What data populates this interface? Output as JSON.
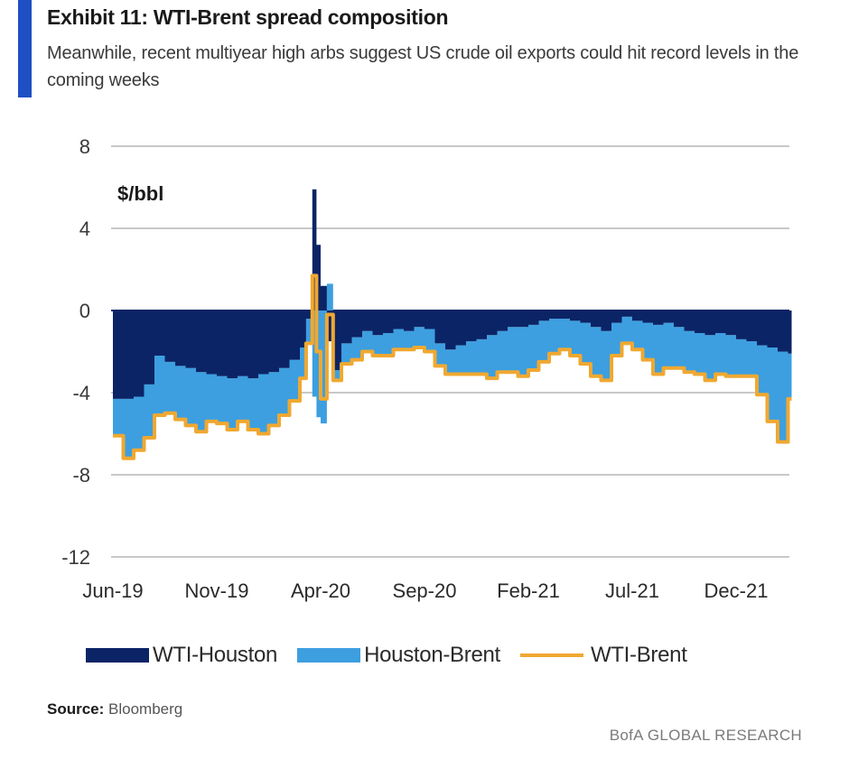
{
  "header": {
    "title": "Exhibit 11: WTI-Brent spread composition",
    "subtitle": "Meanwhile, recent multiyear high arbs suggest US crude oil exports could hit record levels in the coming weeks"
  },
  "footer": {
    "source_label": "Source:",
    "source_value": "Bloomberg",
    "brand": "BofA GLOBAL RESEARCH"
  },
  "chart_data": {
    "type": "area",
    "title": "Exhibit 11: WTI-Brent spread composition",
    "ylabel": "$/bbl",
    "xlabel": "",
    "ylim": [
      -12,
      8
    ],
    "yticks": [
      8,
      4,
      0,
      -4,
      -8,
      -12
    ],
    "xticks": [
      "Jun-19",
      "Nov-19",
      "Apr-20",
      "Sep-20",
      "Feb-21",
      "Jul-21",
      "Dec-21"
    ],
    "x_unit": "months since Jun-19",
    "x_range": [
      0,
      32.5
    ],
    "grid": true,
    "legend_position": "bottom",
    "x": [
      0,
      0.5,
      1,
      1.5,
      2,
      2.5,
      3,
      3.5,
      4,
      4.5,
      5,
      5.5,
      6,
      6.5,
      7,
      7.5,
      8,
      8.5,
      9,
      9.3,
      9.6,
      9.8,
      10,
      10.3,
      10.6,
      11,
      11.5,
      12,
      12.5,
      13,
      13.5,
      14,
      14.5,
      15,
      15.5,
      16,
      16.5,
      17,
      17.5,
      18,
      18.5,
      19,
      19.5,
      20,
      20.5,
      21,
      21.5,
      22,
      22.5,
      23,
      23.5,
      24,
      24.5,
      25,
      25.5,
      26,
      26.5,
      27,
      27.5,
      28,
      28.5,
      29,
      29.5,
      30,
      30.5,
      31,
      31.5,
      32,
      32.5
    ],
    "series": [
      {
        "name": "WTI-Houston",
        "type": "stacked-area",
        "color": "#0b2466",
        "values": [
          -4.3,
          -4.3,
          -4.2,
          -3.6,
          -2.2,
          -2.5,
          -2.7,
          -2.8,
          -3.0,
          -3.1,
          -3.2,
          -3.3,
          -3.2,
          -3.3,
          -3.1,
          -3.0,
          -2.8,
          -2.4,
          -1.8,
          -0.4,
          5.9,
          3.2,
          1.2,
          -1.5,
          -2.9,
          -1.6,
          -1.3,
          -1.0,
          -1.2,
          -1.1,
          -0.9,
          -1.0,
          -0.8,
          -0.9,
          -1.6,
          -1.9,
          -1.7,
          -1.5,
          -1.4,
          -1.2,
          -1.0,
          -0.8,
          -0.8,
          -0.7,
          -0.5,
          -0.4,
          -0.4,
          -0.5,
          -0.6,
          -0.8,
          -1.0,
          -0.6,
          -0.3,
          -0.5,
          -0.6,
          -0.7,
          -0.6,
          -0.8,
          -1.0,
          -1.1,
          -1.2,
          -1.1,
          -1.2,
          -1.4,
          -1.5,
          -1.7,
          -1.8,
          -2.0,
          -2.1
        ]
      },
      {
        "name": "Houston-Brent",
        "type": "stacked-area",
        "color": "#3d9fe0",
        "values": [
          -1.8,
          -2.9,
          -2.6,
          -2.6,
          -2.9,
          -2.5,
          -2.6,
          -2.8,
          -2.9,
          -2.3,
          -2.3,
          -2.5,
          -2.2,
          -2.5,
          -2.9,
          -2.6,
          -2.3,
          -2.0,
          -1.5,
          -1.2,
          -4.2,
          -5.2,
          -5.5,
          1.3,
          -0.5,
          -1.0,
          -1.1,
          -1.0,
          -1.0,
          -1.1,
          -1.0,
          -0.9,
          -1.0,
          -1.1,
          -1.1,
          -1.2,
          -1.4,
          -1.6,
          -1.7,
          -2.1,
          -2.0,
          -2.2,
          -2.4,
          -2.2,
          -2.0,
          -1.7,
          -1.5,
          -1.7,
          -2.0,
          -2.4,
          -2.4,
          -1.6,
          -1.3,
          -1.4,
          -1.8,
          -2.4,
          -2.2,
          -2.0,
          -2.0,
          -2.0,
          -2.2,
          -2.0,
          -2.0,
          -1.8,
          -1.7,
          -2.4,
          -3.6,
          -4.4,
          -2.2
        ]
      },
      {
        "name": "WTI-Brent",
        "type": "line",
        "color": "#f0a830",
        "values": [
          -6.1,
          -7.2,
          -6.8,
          -6.2,
          -5.1,
          -5.0,
          -5.3,
          -5.6,
          -5.9,
          -5.4,
          -5.5,
          -5.8,
          -5.4,
          -5.8,
          -6.0,
          -5.6,
          -5.1,
          -4.4,
          -3.3,
          -1.6,
          1.7,
          -2.0,
          -4.3,
          -0.2,
          -3.4,
          -2.6,
          -2.4,
          -2.0,
          -2.2,
          -2.2,
          -1.9,
          -1.9,
          -1.8,
          -2.0,
          -2.7,
          -3.1,
          -3.1,
          -3.1,
          -3.1,
          -3.3,
          -3.0,
          -3.0,
          -3.2,
          -2.9,
          -2.5,
          -2.1,
          -1.9,
          -2.2,
          -2.6,
          -3.2,
          -3.4,
          -2.2,
          -1.6,
          -1.9,
          -2.4,
          -3.1,
          -2.8,
          -2.8,
          -3.0,
          -3.1,
          -3.4,
          -3.1,
          -3.2,
          -3.2,
          -3.2,
          -4.1,
          -5.4,
          -6.4,
          -4.3
        ]
      }
    ]
  },
  "legend": [
    {
      "label": "WTI-Houston",
      "color": "#0b2466",
      "kind": "box"
    },
    {
      "label": "Houston-Brent",
      "color": "#3d9fe0",
      "kind": "box"
    },
    {
      "label": "WTI-Brent",
      "color": "#f0a830",
      "kind": "line"
    }
  ]
}
